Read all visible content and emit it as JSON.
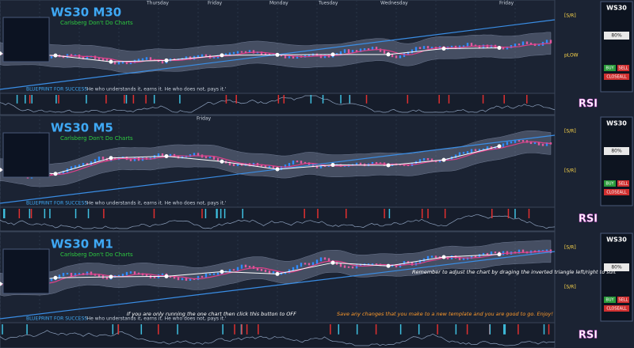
{
  "panels": [
    {
      "title": "WS30 M30",
      "subtitle": "Carlsberg Don't Do Charts",
      "days": [
        "Thursday",
        "Friday",
        "Monday",
        "Tuesday",
        "Wednesday",
        "Friday"
      ],
      "footer": "BLUEPRINT FOR SUCCESS",
      "quote": "'He who understands it, earns it. He who does not, pays it.'",
      "rsi": "RSI",
      "levels": [
        "[S/R]",
        "pLOW"
      ]
    },
    {
      "title": "WS30 M5",
      "subtitle": "Carlsberg Don't Do Charts",
      "days": [
        "Friday"
      ],
      "footer": "BLUEPRINT FOR SUCCESS",
      "quote": "'He who understands it, earns it. He who does not, pays it.'",
      "rsi": "RSI",
      "levels": [
        "[S/R]",
        "[S/R]"
      ]
    },
    {
      "title": "WS30 M1",
      "subtitle": "Carlsberg Don't Do Charts",
      "days": [],
      "footer": "BLUEPRINT FOR SUCCESS",
      "quote": "'He who understands it, earns it. He who does not, pays it.'",
      "rsi": "RSI",
      "levels": [
        "[S/R]",
        "[S/R]"
      ]
    }
  ],
  "side": {
    "symbol": "WS30",
    "pct": "80%",
    "buy": "BUY",
    "sell": "SELL",
    "close": "CLOSEALL"
  },
  "notes": [
    "Remember to adjust the chart by draging the inverted triangle left/right to suit",
    "If you are only running the one chart then click this button to OFF",
    "Save any changes that you make to a new template and you are good to go. Enjoy!"
  ]
}
